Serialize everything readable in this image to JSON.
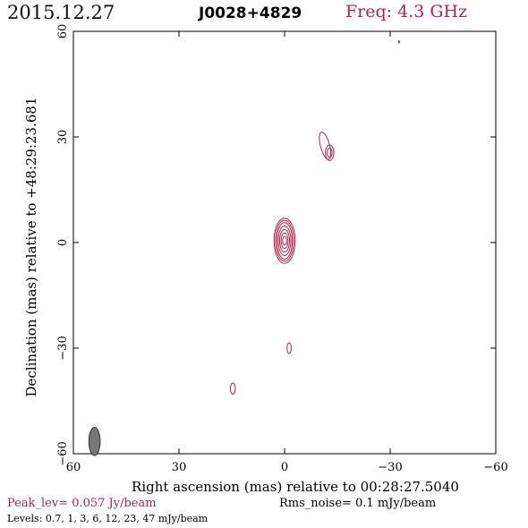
{
  "header": {
    "date": "2015.12.27",
    "source": "J0028+4829",
    "freq": "Freq: 4.3 GHz"
  },
  "footer": {
    "peak": "Peak_lev=  0.057 Jy/beam",
    "rms": "Rms_noise=  0.1 mJy/beam",
    "levels": "Levels: 0.7,   1,   3,   6,  12,  23,  47 mJy/beam"
  },
  "colors": {
    "contour": "#b0234a",
    "beam": "#777777",
    "axis": "#000000"
  },
  "chart_data": {
    "type": "contour",
    "xlabel": "Right ascension (mas) relative to 00:28:27.5040",
    "ylabel": "Declination (mas) relative to +48:29:23.681",
    "xlim": [
      60,
      -60
    ],
    "ylim": [
      -60,
      60
    ],
    "x_ticks": [
      60,
      30,
      0,
      -30,
      -60
    ],
    "y_ticks": [
      -60,
      -30,
      0,
      30,
      60
    ],
    "x_tick_labels": [
      "60",
      "30",
      "0",
      "−30",
      "−60"
    ],
    "y_tick_labels": [
      "−60",
      "−30",
      "0",
      "30",
      "60"
    ],
    "contour_levels_mJy": [
      0.7,
      1,
      3,
      6,
      12,
      23,
      47
    ],
    "components": [
      {
        "name": "core",
        "x": 0,
        "y": 0.5,
        "rx": [
          0.6,
          1.0,
          1.4,
          1.8,
          2.2,
          2.6,
          3.0
        ],
        "ry": [
          1.2,
          2.2,
          3.2,
          4.2,
          5.2,
          5.8,
          6.4
        ],
        "angle": 0
      },
      {
        "name": "jet-1",
        "x": -11.5,
        "y": 27.5,
        "rx": [
          1.3
        ],
        "ry": [
          4.0
        ],
        "angle": -15
      },
      {
        "name": "jet-1b",
        "x": -12.8,
        "y": 25.5,
        "rx": [
          0.7,
          1.2
        ],
        "ry": [
          1.3,
          2.2
        ],
        "angle": 0
      },
      {
        "name": "blob-south",
        "x": -1.3,
        "y": -30,
        "rx": [
          0.6
        ],
        "ry": [
          1.5
        ],
        "angle": 0
      },
      {
        "name": "blob-southwest",
        "x": 14.7,
        "y": -41.5,
        "rx": [
          0.7
        ],
        "ry": [
          1.6
        ],
        "angle": 0
      },
      {
        "name": "spot-north",
        "x": -32.5,
        "y": 57,
        "rx": [
          0.15
        ],
        "ry": [
          0.3
        ],
        "angle": 0
      }
    ],
    "beam": {
      "x": 54,
      "y": -56.5,
      "major": 4.0,
      "minor": 1.6,
      "angle": 0
    }
  }
}
